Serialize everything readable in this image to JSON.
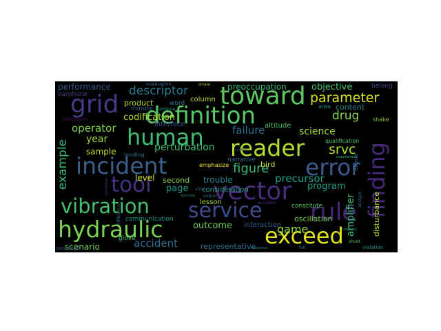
{
  "wordcloud": {
    "words": [
      {
        "text": "definition",
        "color": "#58c767"
      },
      {
        "text": "human",
        "color": "#40bd72"
      },
      {
        "text": "toward",
        "color": "#5ec962"
      },
      {
        "text": "incident",
        "color": "#3b5f8b"
      },
      {
        "text": "service",
        "color": "#3f4c8a"
      },
      {
        "text": "vector",
        "color": "#472d7b"
      },
      {
        "text": "error",
        "color": "#3c5a8c"
      },
      {
        "text": "reader",
        "color": "#b0dd2f"
      },
      {
        "text": "hydraulic",
        "color": "#7ad151"
      },
      {
        "text": "vibration",
        "color": "#44bf70"
      },
      {
        "text": "exceed",
        "color": "#e0e31a"
      },
      {
        "text": "rule",
        "color": "#482475"
      },
      {
        "text": "grid",
        "color": "#443983"
      },
      {
        "text": "tool",
        "color": "#46327e"
      },
      {
        "text": "finding",
        "color": "#482979"
      },
      {
        "text": "parameter",
        "color": "#dbe31f"
      },
      {
        "text": "descriptor",
        "color": "#2a788e"
      },
      {
        "text": "codification",
        "color": "#b5de2b"
      },
      {
        "text": "perturbation",
        "color": "#3fbc73"
      },
      {
        "text": "failure",
        "color": "#2c738e"
      },
      {
        "text": "science",
        "color": "#a8db34"
      },
      {
        "text": "drug",
        "color": "#84d44b"
      },
      {
        "text": "srvc",
        "color": "#b0dd2f"
      },
      {
        "text": "operator",
        "color": "#7fd34e"
      },
      {
        "text": "year",
        "color": "#9bd93c"
      },
      {
        "text": "sample",
        "color": "#bddf26"
      },
      {
        "text": "example",
        "color": "#37b878"
      },
      {
        "text": "figure",
        "color": "#3bbb75"
      },
      {
        "text": "precursor",
        "color": "#1fa187"
      },
      {
        "text": "program",
        "color": "#1f9e89"
      },
      {
        "text": "level",
        "color": "#cde11d"
      },
      {
        "text": "page",
        "color": "#1f998a"
      },
      {
        "text": "second",
        "color": "#8ad547"
      },
      {
        "text": "amplifier",
        "color": "#3dbc74"
      },
      {
        "text": "outcome",
        "color": "#6ece58"
      },
      {
        "text": "game",
        "color": "#93d741"
      },
      {
        "text": "accident",
        "color": "#2e6e8e"
      },
      {
        "text": "scenario",
        "color": "#77d153"
      },
      {
        "text": "performance",
        "color": "#38598c"
      },
      {
        "text": "preoccupation",
        "color": "#35b779"
      },
      {
        "text": "objective",
        "color": "#4ac16d"
      },
      {
        "text": "content",
        "color": "#25848e"
      },
      {
        "text": "product",
        "color": "#b5de2b"
      },
      {
        "text": "column",
        "color": "#b8de29"
      },
      {
        "text": "word",
        "color": "#2a768e"
      },
      {
        "text": "minute",
        "color": "#355e8d"
      },
      {
        "text": "altitude",
        "color": "#50c46a"
      },
      {
        "text": "narrative",
        "color": "#2c728e"
      },
      {
        "text": "bird",
        "color": "#c0df25"
      },
      {
        "text": "trouble",
        "color": "#26828e"
      },
      {
        "text": "consideration",
        "color": "#1e9c89"
      },
      {
        "text": "lesson",
        "color": "#a2da37"
      },
      {
        "text": "interaction",
        "color": "#33638d"
      },
      {
        "text": "oscillation",
        "color": "#77d153"
      },
      {
        "text": "constitute",
        "color": "#5cc863"
      },
      {
        "text": "disturbance",
        "color": "#b8de29"
      },
      {
        "text": "communication",
        "color": "#1f968b"
      },
      {
        "text": "glove",
        "color": "#42be71"
      },
      {
        "text": "representative",
        "color": "#2d708e"
      },
      {
        "text": "belong",
        "color": "#3f4889"
      },
      {
        "text": "earphone",
        "color": "#414487"
      },
      {
        "text": "interface",
        "color": "#3b528b"
      },
      {
        "text": "evaluation",
        "color": "#31688e"
      },
      {
        "text": "landing",
        "color": "#2c738e"
      },
      {
        "text": "emphasize",
        "color": "#f1e51d"
      },
      {
        "text": "qualification",
        "color": "#56c667"
      },
      {
        "text": "shake",
        "color": "#8ed645"
      },
      {
        "text": "area",
        "color": "#20928c"
      },
      {
        "text": "extend",
        "color": "#2d708e"
      },
      {
        "text": "conclusion",
        "color": "#481668"
      },
      {
        "text": "passenger",
        "color": "#3b528b"
      },
      {
        "text": "continue",
        "color": "#1fa088"
      },
      {
        "text": "analyze",
        "color": "#2d708e"
      },
      {
        "text": "violation",
        "color": "#1f9a8a"
      },
      {
        "text": "reference",
        "color": "#25858e"
      },
      {
        "text": "deviation",
        "color": "#472f7d"
      },
      {
        "text": "output",
        "color": "#2a788e"
      },
      {
        "text": "allow",
        "color": "#375b8d"
      },
      {
        "text": "fall",
        "color": "#2c718e"
      },
      {
        "text": "shoot",
        "color": "#5ec962"
      },
      {
        "text": "become",
        "color": "#1f968b"
      },
      {
        "text": "terminal",
        "color": "#46337f"
      },
      {
        "text": "difference",
        "color": "#31668e"
      },
      {
        "text": "requirement",
        "color": "#29af7f"
      },
      {
        "text": "conflict",
        "color": "#3e4a89"
      },
      {
        "text": "capacity",
        "color": "#1e9b8a"
      },
      {
        "text": "phrase",
        "color": "#b8de29"
      }
    ]
  }
}
